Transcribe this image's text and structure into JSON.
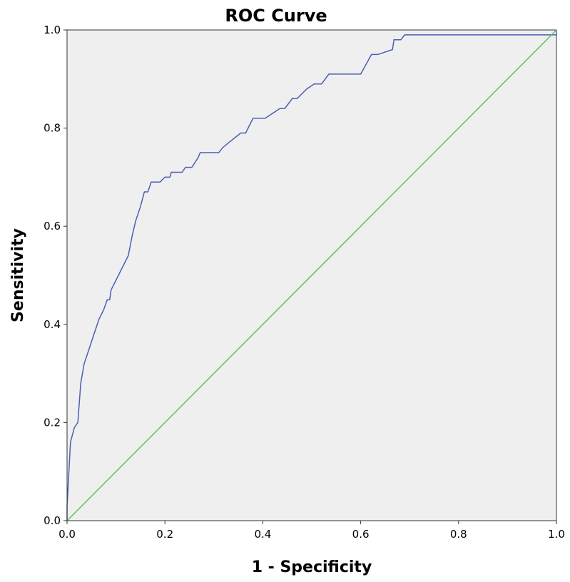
{
  "chart_data": {
    "type": "line",
    "title": "ROC Curve",
    "xlabel": "1 - Specificity",
    "ylabel": "Sensitivity",
    "xlim": [
      0,
      1
    ],
    "ylim": [
      0,
      1
    ],
    "x_ticks": [
      "0.0",
      "0.2",
      "0.4",
      "0.6",
      "0.8",
      "1.0"
    ],
    "y_ticks": [
      "0.0",
      "0.2",
      "0.4",
      "0.6",
      "0.8",
      "1.0"
    ],
    "grid": false,
    "legend": "none",
    "plot_background": "#efefef",
    "series": [
      {
        "role": "roc-curve",
        "color": "#4a5fb5",
        "points": [
          [
            0.0,
            0.0
          ],
          [
            0.0,
            0.03
          ],
          [
            0.007,
            0.16
          ],
          [
            0.015,
            0.19
          ],
          [
            0.022,
            0.2
          ],
          [
            0.028,
            0.28
          ],
          [
            0.035,
            0.32
          ],
          [
            0.045,
            0.35
          ],
          [
            0.055,
            0.38
          ],
          [
            0.065,
            0.41
          ],
          [
            0.075,
            0.43
          ],
          [
            0.082,
            0.45
          ],
          [
            0.087,
            0.45
          ],
          [
            0.09,
            0.47
          ],
          [
            0.105,
            0.5
          ],
          [
            0.125,
            0.54
          ],
          [
            0.133,
            0.58
          ],
          [
            0.14,
            0.61
          ],
          [
            0.15,
            0.64
          ],
          [
            0.158,
            0.67
          ],
          [
            0.165,
            0.67
          ],
          [
            0.172,
            0.69
          ],
          [
            0.19,
            0.69
          ],
          [
            0.2,
            0.7
          ],
          [
            0.21,
            0.7
          ],
          [
            0.213,
            0.71
          ],
          [
            0.235,
            0.71
          ],
          [
            0.242,
            0.72
          ],
          [
            0.255,
            0.72
          ],
          [
            0.268,
            0.74
          ],
          [
            0.272,
            0.75
          ],
          [
            0.31,
            0.75
          ],
          [
            0.318,
            0.76
          ],
          [
            0.33,
            0.77
          ],
          [
            0.355,
            0.79
          ],
          [
            0.365,
            0.79
          ],
          [
            0.38,
            0.82
          ],
          [
            0.405,
            0.82
          ],
          [
            0.435,
            0.84
          ],
          [
            0.445,
            0.84
          ],
          [
            0.46,
            0.86
          ],
          [
            0.47,
            0.86
          ],
          [
            0.49,
            0.88
          ],
          [
            0.505,
            0.89
          ],
          [
            0.52,
            0.89
          ],
          [
            0.535,
            0.91
          ],
          [
            0.6,
            0.91
          ],
          [
            0.622,
            0.95
          ],
          [
            0.635,
            0.95
          ],
          [
            0.665,
            0.96
          ],
          [
            0.668,
            0.98
          ],
          [
            0.682,
            0.98
          ],
          [
            0.69,
            0.99
          ],
          [
            1.0,
            0.99
          ],
          [
            1.0,
            1.0
          ]
        ]
      },
      {
        "role": "reference-line",
        "color": "#5ec45e",
        "points": [
          [
            0.0,
            0.0
          ],
          [
            1.0,
            1.0
          ]
        ]
      }
    ]
  }
}
